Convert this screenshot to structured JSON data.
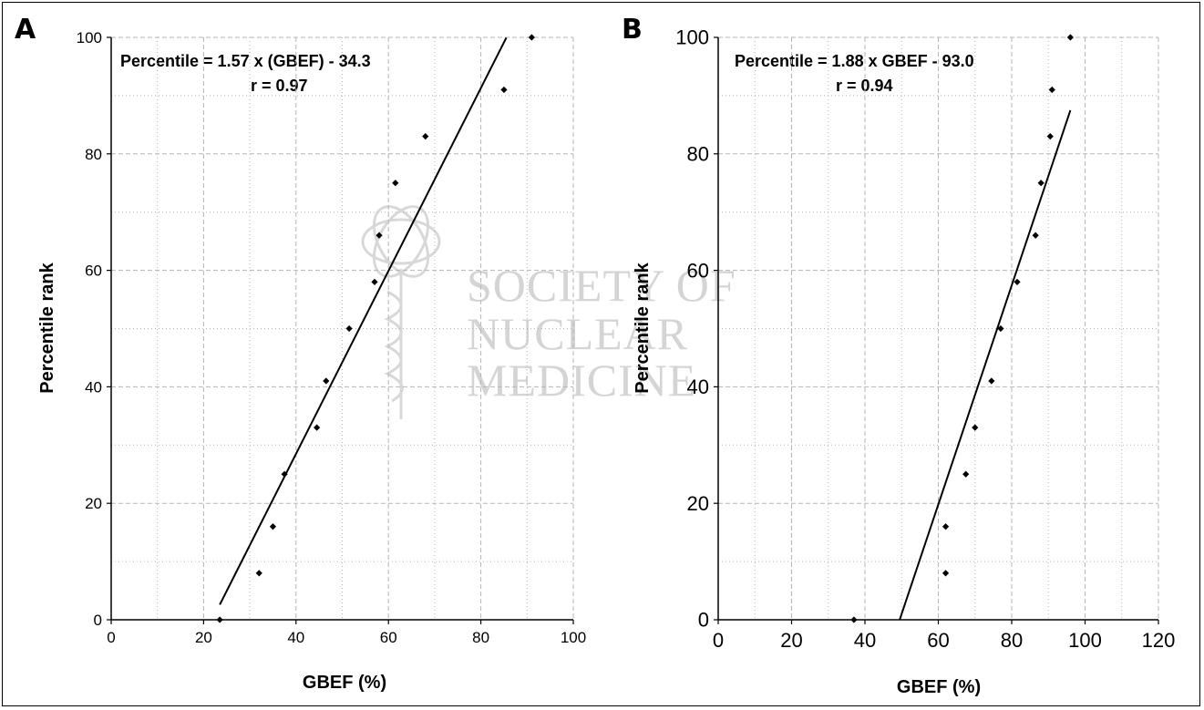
{
  "chart_data": [
    {
      "type": "scatter",
      "panel": "A",
      "xlabel": "GBEF (%)",
      "ylabel": "Percentile rank",
      "xlim": [
        0,
        100
      ],
      "ylim": [
        0,
        100
      ],
      "x_ticks": [
        0,
        20,
        40,
        60,
        80,
        100
      ],
      "y_ticks": [
        0,
        20,
        40,
        60,
        80,
        100
      ],
      "grid": true,
      "annotations": [
        "Percentile = 1.57 x (GBEF) - 34.3",
        "r = 0.97"
      ],
      "series": [
        {
          "x": [
            23.5,
            32,
            35,
            37.5,
            44.5,
            46.5,
            51.5,
            57,
            58,
            61.5,
            68,
            85,
            91
          ],
          "y": [
            0,
            8,
            16,
            25,
            33,
            41,
            50,
            58,
            66,
            75,
            83,
            91,
            100
          ]
        }
      ],
      "fit": {
        "slope": 1.57,
        "intercept": -34.3,
        "x_range": [
          23.5,
          85.5
        ]
      }
    },
    {
      "type": "scatter",
      "panel": "B",
      "xlabel": "GBEF (%)",
      "ylabel": "Percentile rank",
      "xlim": [
        0,
        120
      ],
      "ylim": [
        0,
        100
      ],
      "x_ticks": [
        0,
        20,
        40,
        60,
        80,
        100,
        120
      ],
      "y_ticks": [
        0,
        20,
        40,
        60,
        80,
        100
      ],
      "grid": true,
      "annotations": [
        "Percentile = 1.88 x GBEF - 93.0",
        "r = 0.94"
      ],
      "series": [
        {
          "x": [
            37,
            62,
            62,
            67.5,
            70,
            74.5,
            77,
            81.5,
            86.5,
            88,
            90.5,
            91,
            96
          ],
          "y": [
            0,
            8,
            16,
            25,
            33,
            41,
            50,
            58,
            66,
            75,
            83,
            91,
            100
          ]
        }
      ],
      "fit": {
        "slope": 1.88,
        "intercept": -93.0,
        "x_range": [
          49.5,
          96
        ]
      }
    }
  ],
  "panels": {
    "a_letter": "A",
    "b_letter": "B"
  },
  "watermark": {
    "line1": "SOCIETY OF",
    "line2": "NUCLEAR",
    "line3": "MEDICINE"
  },
  "colors": {
    "grid": "#b5b5b5",
    "axis": "#000000",
    "point": "#000000",
    "watermark": "#d4d4d4"
  }
}
